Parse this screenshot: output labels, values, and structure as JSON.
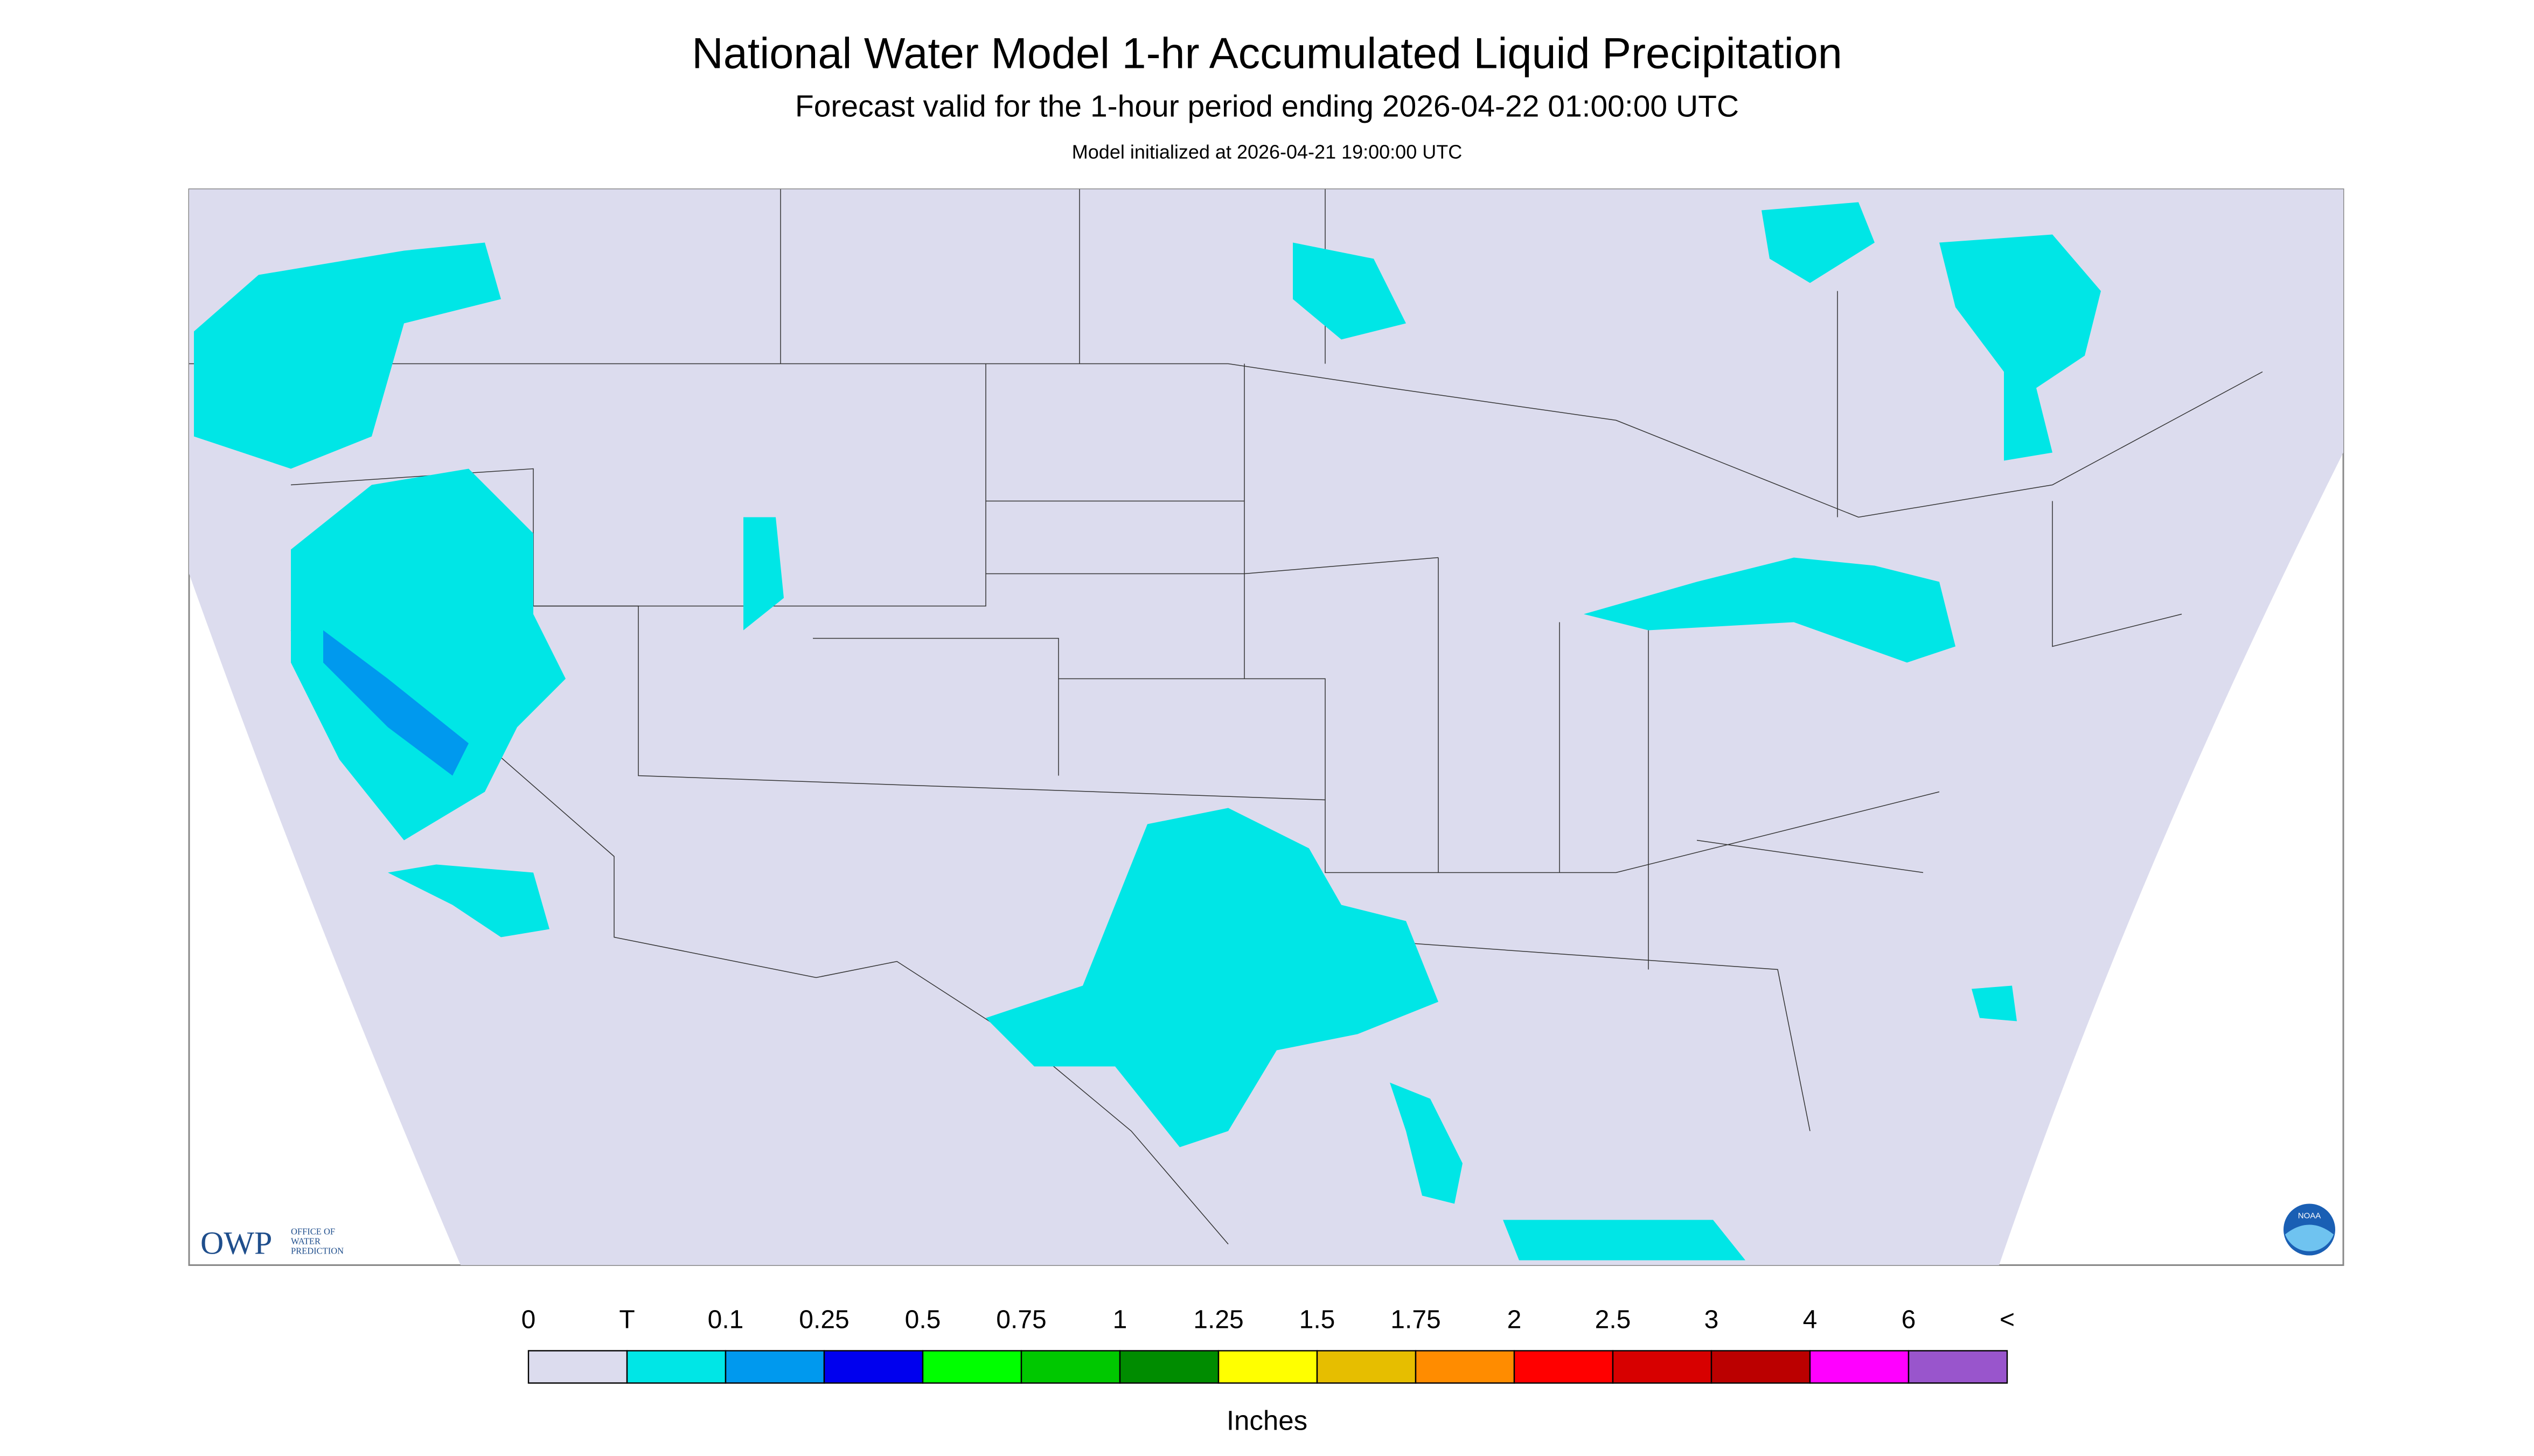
{
  "header": {
    "title": "National Water Model 1-hr Accumulated Liquid Precipitation",
    "subtitle": "Forecast valid for the 1-hour period ending 2026-04-22 01:00:00 UTC",
    "init": "Model initialized at 2026-04-21 19:00:00 UTC"
  },
  "logos": {
    "owp": "OWP",
    "owp_lines": [
      "OFFICE OF",
      "WATER",
      "PREDICTION"
    ],
    "noaa": "NOAA"
  },
  "legend": {
    "labels": [
      "0",
      "T",
      "0.1",
      "0.25",
      "0.5",
      "0.75",
      "1",
      "1.25",
      "1.5",
      "1.75",
      "2",
      "2.5",
      "3",
      "4",
      "6",
      "<"
    ],
    "colors": [
      "#dcdcee",
      "#00e6e6",
      "#0099ee",
      "#0000ee",
      "#00ff00",
      "#00c800",
      "#008c00",
      "#ffff00",
      "#e6be00",
      "#ff8c00",
      "#ff0000",
      "#d70000",
      "#bb0000",
      "#ff00ff",
      "#9955cc"
    ],
    "unit": "Inches"
  }
}
